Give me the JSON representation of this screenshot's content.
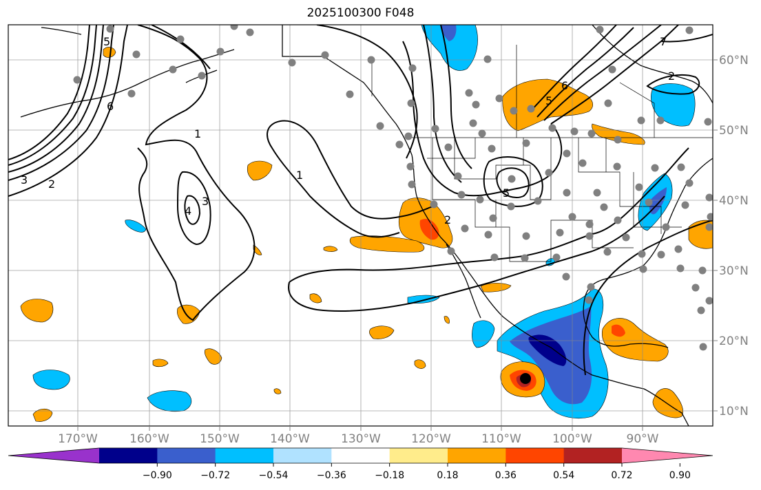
{
  "title": "2025100300 F048",
  "map": {
    "lon_range": [
      -180,
      -80
    ],
    "lat_range": [
      8,
      65
    ],
    "lon_ticks": [
      "170°W",
      "160°W",
      "150°W",
      "140°W",
      "130°W",
      "120°W",
      "110°W",
      "100°W",
      "90°W"
    ],
    "lat_ticks": [
      "60°N",
      "50°N",
      "40°N",
      "30°N",
      "20°N",
      "10°N"
    ],
    "grid": true,
    "station_marker_color": "#808080",
    "contour_color": "#000000",
    "contour_labels": [
      "1",
      "2",
      "3",
      "4",
      "5",
      "6",
      "7"
    ]
  },
  "colorbar": {
    "orientation": "horizontal",
    "extend": "both",
    "colors": [
      "#9932cc",
      "#00008b",
      "#3a5fcd",
      "#00bfff",
      "#b0e2ff",
      "#ffffff",
      "#ffec8b",
      "#ffa500",
      "#ff4500",
      "#b22222",
      "#ff88b0"
    ],
    "tick_labels": [
      "−0.90",
      "−0.72",
      "−0.54",
      "−0.36",
      "−0.18",
      "0.18",
      "0.36",
      "0.54",
      "0.72",
      "0.90"
    ]
  }
}
